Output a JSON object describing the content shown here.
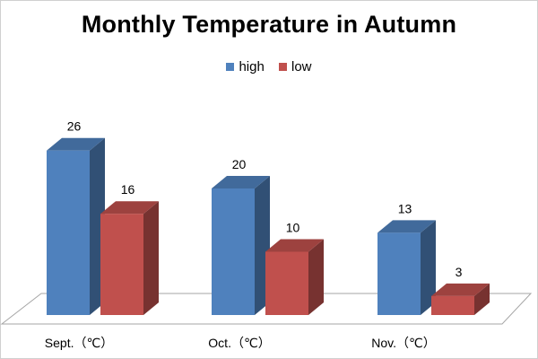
{
  "chart_data": {
    "type": "bar",
    "title": "Monthly Temperature in Autumn",
    "categories": [
      "Sept.（℃）",
      "Oct.（℃）",
      "Nov.（℃）"
    ],
    "series": [
      {
        "name": "high",
        "values": [
          26,
          20,
          13
        ],
        "color": "#4F81BD"
      },
      {
        "name": "low",
        "values": [
          16,
          10,
          3
        ],
        "color": "#C0504D"
      }
    ],
    "ylim": [
      0,
      30
    ],
    "legend": "top-center",
    "grid": false,
    "style": "3d-clustered-column"
  }
}
